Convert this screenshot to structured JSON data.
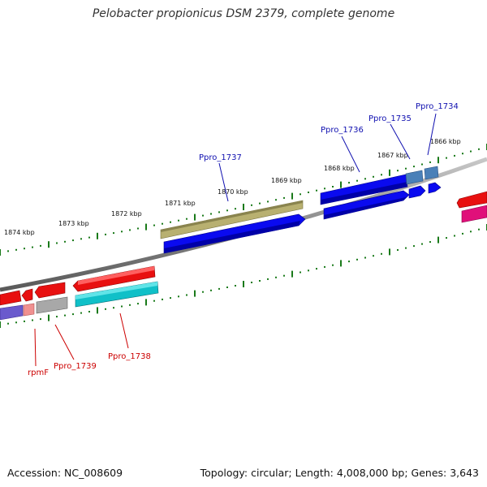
{
  "title": "Pelobacter propionicus DSM 2379, complete genome",
  "footer": {
    "accession": "Accession: NC_008609",
    "topology": "Topology: circular; Length: 4,008,000 bp; Genes: 3,643"
  },
  "ruler": {
    "tick_color": "#1a7a1a",
    "labels": [
      "1866 kbp",
      "1867 kbp",
      "1868 kbp",
      "1869 kbp",
      "1870 kbp",
      "1871 kbp",
      "1872 kbp",
      "1873 kbp",
      "1874 kbp"
    ]
  },
  "genes": {
    "forward_labels": [
      "Ppro_1734",
      "Ppro_1735",
      "Ppro_1736",
      "Ppro_1737"
    ],
    "reverse_labels": [
      "Ppro_1738",
      "Ppro_1739",
      "rpmF"
    ],
    "forward_label_color": "#1010b0",
    "reverse_label_color": "#cc0000"
  },
  "colors": {
    "blue": "#0a0af0",
    "steel": "#4a80b8",
    "olive": "#b8b070",
    "red": "#e81010",
    "cyan": "#10c0c8",
    "magenta": "#e0107a",
    "gray": "#a8a8a8",
    "purple": "#6a5acd",
    "pink": "#f09090",
    "backbone": "#808080"
  }
}
